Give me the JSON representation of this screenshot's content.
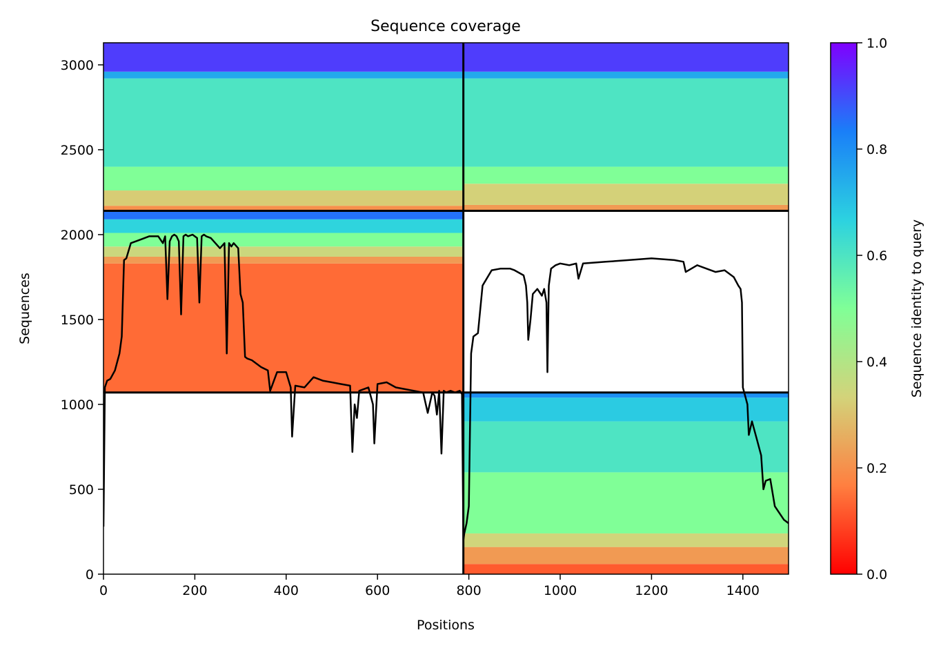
{
  "chart_data": {
    "type": "heatmap",
    "title": "Sequence coverage",
    "xlabel": "Positions",
    "ylabel": "Sequences",
    "xlim": [
      0,
      1500
    ],
    "ylim": [
      0,
      3130
    ],
    "x_ticks": [
      0,
      200,
      400,
      600,
      800,
      1000,
      1200,
      1400
    ],
    "y_ticks": [
      0,
      500,
      1000,
      1500,
      2000,
      2500,
      3000
    ],
    "grid": false,
    "colormap": "rainbow",
    "colorbar": {
      "label": "Sequence identity to query",
      "range": [
        0,
        1
      ],
      "ticks": [
        "0.0",
        "0.2",
        "0.4",
        "0.6",
        "0.8",
        "1.0"
      ],
      "stops": [
        "#ff0000",
        "#ff7f40",
        "#d3d37a",
        "#80ff97",
        "#2cd2e0",
        "#1a7ff8",
        "#7f00ff"
      ]
    },
    "boundaries": {
      "vertical_x": [
        788
      ],
      "horizontal_y": [
        1070,
        2140
      ]
    },
    "blocks": [
      {
        "name": "top-left",
        "x": [
          0,
          788
        ],
        "y": [
          2140,
          3130
        ],
        "bands": [
          {
            "y": [
              2140,
              2170
            ],
            "identity": 0.2
          },
          {
            "y": [
              2170,
              2260
            ],
            "identity": 0.32
          },
          {
            "y": [
              2260,
              2400
            ],
            "identity": 0.5
          },
          {
            "y": [
              2400,
              2920
            ],
            "identity": 0.6
          },
          {
            "y": [
              2920,
              2960
            ],
            "identity": 0.75
          },
          {
            "y": [
              2960,
              3130
            ],
            "identity": 0.92
          }
        ]
      },
      {
        "name": "top-right",
        "x": [
          788,
          1500
        ],
        "y": [
          2140,
          3130
        ],
        "bands": [
          {
            "y": [
              2140,
              2175
            ],
            "identity": 0.22
          },
          {
            "y": [
              2175,
              2300
            ],
            "identity": 0.33
          },
          {
            "y": [
              2300,
              2400
            ],
            "identity": 0.5
          },
          {
            "y": [
              2400,
              2920
            ],
            "identity": 0.6
          },
          {
            "y": [
              2920,
              2960
            ],
            "identity": 0.75
          },
          {
            "y": [
              2960,
              3130
            ],
            "identity": 0.92
          }
        ]
      },
      {
        "name": "middle-left",
        "x": [
          0,
          788
        ],
        "y": [
          1070,
          2140
        ],
        "bands": [
          {
            "y": [
              1070,
              1830
            ],
            "identity": 0.14
          },
          {
            "y": [
              1830,
              1870
            ],
            "identity": 0.22
          },
          {
            "y": [
              1870,
              1930
            ],
            "identity": 0.35
          },
          {
            "y": [
              1930,
              2010
            ],
            "identity": 0.5
          },
          {
            "y": [
              2010,
              2090
            ],
            "identity": 0.66
          },
          {
            "y": [
              2090,
              2140
            ],
            "identity": 0.85
          }
        ]
      },
      {
        "name": "bottom-right",
        "x": [
          788,
          1500
        ],
        "y": [
          0,
          1070
        ],
        "bands": [
          {
            "y": [
              0,
              60
            ],
            "identity": 0.12
          },
          {
            "y": [
              60,
              160
            ],
            "identity": 0.22
          },
          {
            "y": [
              160,
              240
            ],
            "identity": 0.34
          },
          {
            "y": [
              240,
              600
            ],
            "identity": 0.5
          },
          {
            "y": [
              600,
              900
            ],
            "identity": 0.6
          },
          {
            "y": [
              900,
              1040
            ],
            "identity": 0.68
          },
          {
            "y": [
              1040,
              1070
            ],
            "identity": 0.8
          }
        ]
      }
    ],
    "coverage_line": {
      "color": "#000000",
      "x": [
        0,
        3,
        8,
        15,
        25,
        35,
        40,
        45,
        50,
        60,
        80,
        100,
        120,
        130,
        135,
        140,
        145,
        150,
        155,
        160,
        165,
        170,
        175,
        180,
        185,
        195,
        205,
        210,
        215,
        220,
        225,
        235,
        245,
        255,
        265,
        270,
        275,
        280,
        285,
        295,
        300,
        305,
        310,
        315,
        325,
        345,
        360,
        365,
        380,
        400,
        410,
        413,
        420,
        440,
        460,
        480,
        500,
        520,
        540,
        545,
        550,
        555,
        560,
        580,
        590,
        593,
        600,
        620,
        640,
        660,
        680,
        700,
        710,
        720,
        725,
        730,
        735,
        740,
        745,
        750,
        760,
        770,
        780,
        785,
        788,
        790,
        795,
        800,
        805,
        810,
        820,
        830,
        850,
        870,
        890,
        900,
        920,
        925,
        928,
        930,
        935,
        940,
        950,
        960,
        965,
        970,
        972,
        975,
        980,
        990,
        1000,
        1020,
        1035,
        1040,
        1050,
        1100,
        1150,
        1200,
        1250,
        1270,
        1275,
        1300,
        1320,
        1340,
        1360,
        1380,
        1390,
        1395,
        1398,
        1400,
        1405,
        1410,
        1413,
        1420,
        1430,
        1440,
        1445,
        1450,
        1460,
        1470,
        1490,
        1500
      ],
      "y": [
        280,
        1100,
        1140,
        1150,
        1200,
        1300,
        1400,
        1850,
        1860,
        1950,
        1970,
        1990,
        1990,
        1950,
        1990,
        1620,
        1960,
        1990,
        2000,
        1990,
        1960,
        1530,
        1990,
        2000,
        1990,
        2000,
        1980,
        1600,
        1990,
        2000,
        1990,
        1980,
        1950,
        1920,
        1950,
        1300,
        1950,
        1930,
        1950,
        1920,
        1650,
        1600,
        1280,
        1270,
        1260,
        1220,
        1200,
        1080,
        1190,
        1190,
        1100,
        810,
        1110,
        1100,
        1160,
        1140,
        1130,
        1120,
        1110,
        720,
        1000,
        920,
        1080,
        1100,
        1000,
        770,
        1120,
        1130,
        1100,
        1090,
        1080,
        1070,
        950,
        1070,
        1050,
        940,
        1080,
        710,
        1080,
        1070,
        1080,
        1070,
        1080,
        1060,
        200,
        240,
        300,
        400,
        1300,
        1400,
        1420,
        1700,
        1790,
        1800,
        1800,
        1790,
        1760,
        1700,
        1600,
        1380,
        1500,
        1650,
        1680,
        1640,
        1680,
        1600,
        1190,
        1700,
        1800,
        1820,
        1830,
        1820,
        1830,
        1740,
        1830,
        1840,
        1850,
        1860,
        1850,
        1840,
        1780,
        1820,
        1800,
        1780,
        1790,
        1750,
        1700,
        1680,
        1600,
        1100,
        1050,
        1000,
        820,
        900,
        800,
        700,
        500,
        550,
        560,
        400,
        320,
        300
      ]
    }
  }
}
